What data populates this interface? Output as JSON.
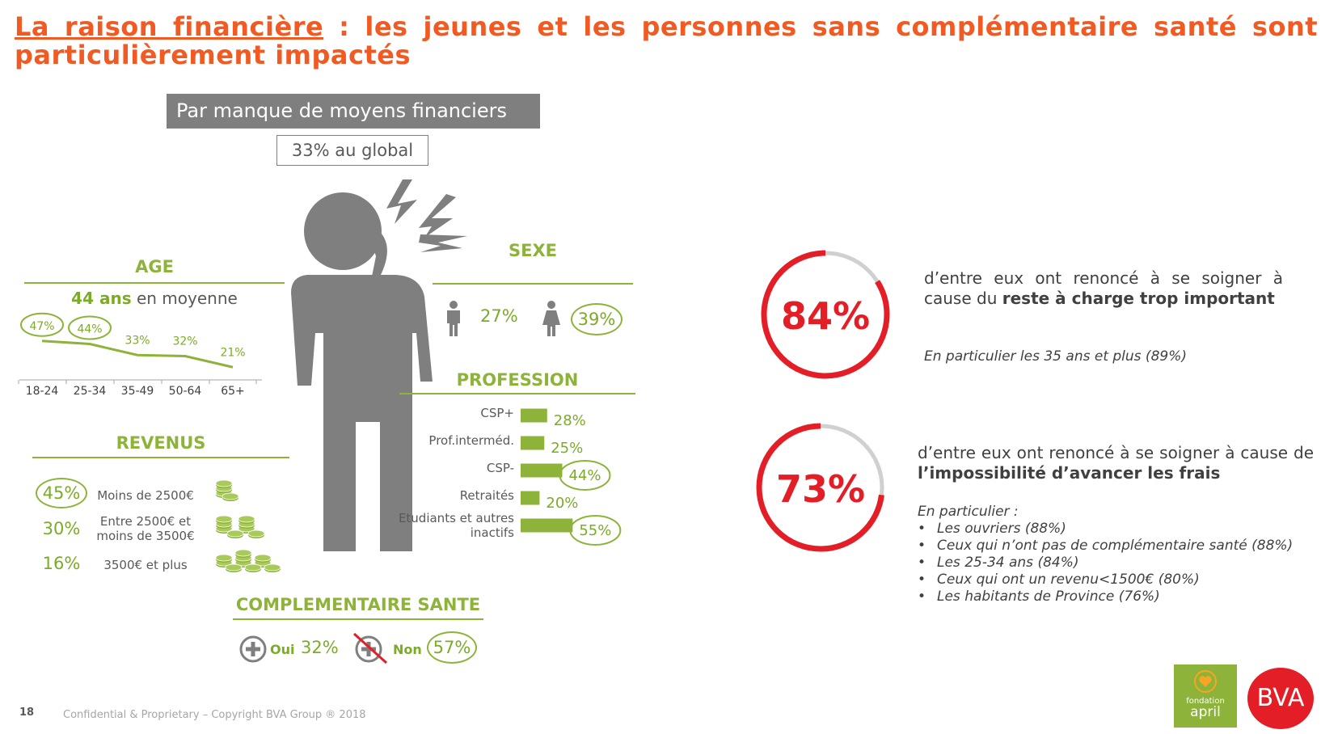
{
  "title": {
    "underlined": "La raison financière",
    "rest": " : les jeunes et les personnes sans complémentaire santé sont particulièrement impactés"
  },
  "banner": "Par manque de moyens financiers",
  "global": "33% au global",
  "age": {
    "head": "AGE",
    "avg_value": "44 ans",
    "avg_suffix": " en moyenne"
  },
  "sexe": {
    "head": "SEXE",
    "male": "27%",
    "female": "39%"
  },
  "profession": {
    "head": "PROFESSION"
  },
  "revenus": {
    "head": "REVENUS",
    "rows": [
      {
        "value": "45%",
        "label1": "Moins de 2500€",
        "label2": ""
      },
      {
        "value": "30%",
        "label1": "Entre 2500€ et",
        "label2": "moins de 3500€"
      },
      {
        "value": "16%",
        "label1": "3500€ et plus",
        "label2": ""
      }
    ]
  },
  "complementaire": {
    "head": "COMPLEMENTAIRE SANTE",
    "oui_label": "Oui",
    "oui_value": "32%",
    "non_label": "Non",
    "non_value": "57%"
  },
  "stat1": {
    "value": "84%",
    "text_pre": "d’entre eux ont renoncé à se soigner à cause du ",
    "text_bold": "reste à charge trop important",
    "note": "En particulier les 35 ans et plus (89%)"
  },
  "stat2": {
    "value": "73%",
    "text_pre": "d’entre eux ont renoncé à se soigner à cause de ",
    "text_bold": "l’impossibilité d’avancer les frais",
    "note": "En particulier :",
    "bullets": [
      "Les ouvriers (88%)",
      "Ceux qui n’ont pas de complémentaire santé (88%)",
      "Les 25-34 ans  (84%)",
      "Ceux qui ont un revenu<1500€ (80%)",
      "Les habitants de Province (76%)"
    ]
  },
  "footer": {
    "page": "18",
    "text": "Confidential & Proprietary – Copyright BVA Group ®  2018"
  },
  "logos": {
    "fondation1": "fondation",
    "fondation2": "april",
    "bva": "BVA"
  },
  "colors": {
    "accent": "#f15a22",
    "green": "#8db33a",
    "red": "#e41e26",
    "grey": "#7f7f7f"
  },
  "chart_data": [
    {
      "type": "line",
      "title": "AGE",
      "categories": [
        "18-24",
        "25-34",
        "35-49",
        "50-64",
        "65+"
      ],
      "values": [
        47,
        44,
        33,
        32,
        21
      ],
      "labels": [
        "47%",
        "44%",
        "33%",
        "32%",
        "21%"
      ],
      "circled": [
        true,
        true,
        false,
        false,
        false
      ],
      "ylim": [
        0,
        100
      ]
    },
    {
      "type": "bar",
      "title": "PROFESSION",
      "categories": [
        "CSP+",
        "Prof.interméd.",
        "CSP-",
        "Retraités",
        "Etudiants et autres inactifs"
      ],
      "values": [
        28,
        25,
        44,
        20,
        55
      ],
      "labels": [
        "28%",
        "25%",
        "44%",
        "20%",
        "55%"
      ],
      "circled": [
        false,
        false,
        true,
        false,
        true
      ]
    },
    {
      "type": "pie",
      "title": "",
      "values": [
        84,
        16
      ],
      "label": "84%"
    },
    {
      "type": "pie",
      "title": "",
      "values": [
        73,
        27
      ],
      "label": "73%"
    }
  ]
}
